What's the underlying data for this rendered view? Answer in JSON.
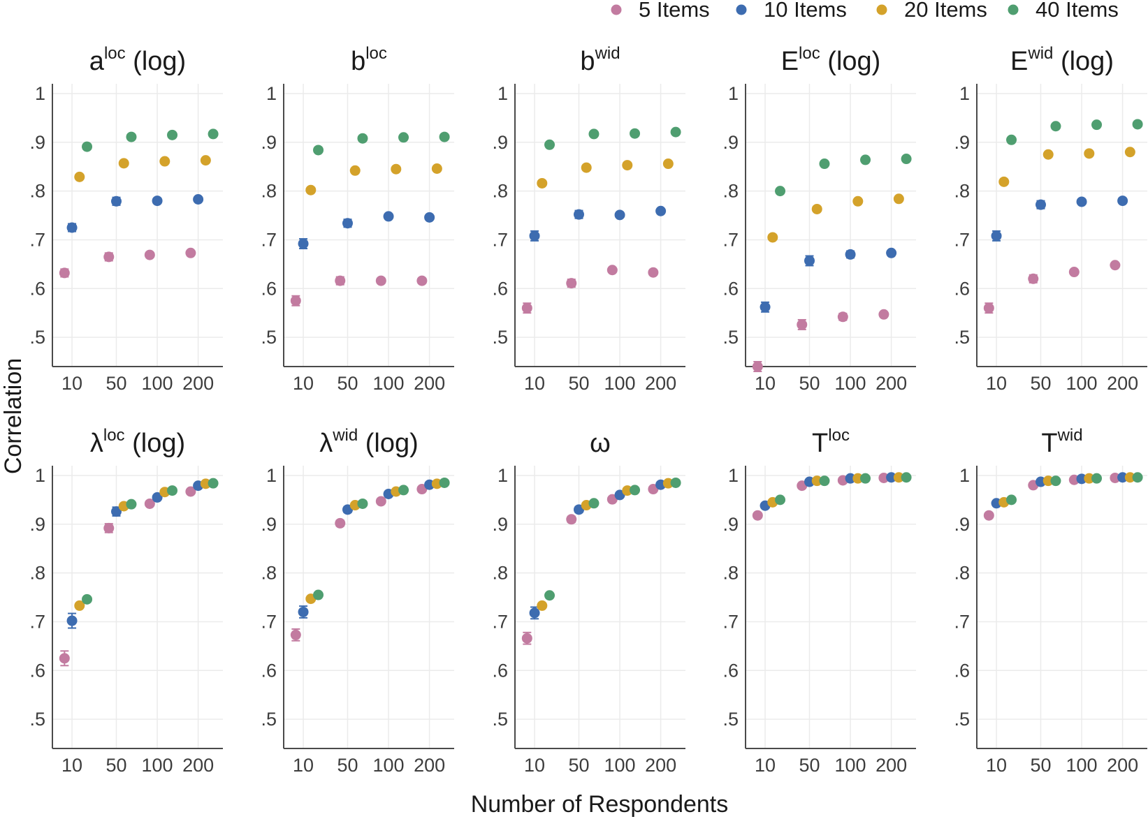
{
  "chart_data": {
    "type": "scatter",
    "xlabel": "Number of Respondents",
    "ylabel": "Correlation",
    "x_categories": [
      "10",
      "50",
      "100",
      "200"
    ],
    "y_ticks": [
      ".5",
      ".6",
      ".7",
      ".8",
      ".9",
      "1"
    ],
    "ylim": [
      0.44,
      1.02
    ],
    "grid": true,
    "legend_position": "top-right",
    "series": [
      {
        "name": "5 Items",
        "color": "#c27ba0"
      },
      {
        "name": "10 Items",
        "color": "#3d6cb0"
      },
      {
        "name": "20 Items",
        "color": "#d4a22a"
      },
      {
        "name": "40 Items",
        "color": "#4f9e70"
      }
    ],
    "panels": [
      {
        "title": "a",
        "sup": "loc",
        "suffix": " (log)",
        "values": [
          [
            0.632,
            0.665,
            0.669,
            0.673
          ],
          [
            0.725,
            0.779,
            0.78,
            0.783
          ],
          [
            0.829,
            0.857,
            0.861,
            0.863
          ],
          [
            0.891,
            0.911,
            0.915,
            0.917
          ]
        ],
        "errors": [
          0.008,
          0.008,
          0,
          0
        ]
      },
      {
        "title": "b",
        "sup": "loc",
        "suffix": "",
        "values": [
          [
            0.575,
            0.616,
            0.616,
            0.616
          ],
          [
            0.692,
            0.734,
            0.748,
            0.746
          ],
          [
            0.802,
            0.842,
            0.845,
            0.846
          ],
          [
            0.884,
            0.908,
            0.91,
            0.911
          ]
        ],
        "errors": [
          0.01,
          0.008,
          0,
          0
        ]
      },
      {
        "title": "b",
        "sup": "wid",
        "suffix": "",
        "values": [
          [
            0.56,
            0.611,
            0.638,
            0.633
          ],
          [
            0.708,
            0.752,
            0.751,
            0.759
          ],
          [
            0.816,
            0.848,
            0.853,
            0.856
          ],
          [
            0.895,
            0.917,
            0.918,
            0.921
          ]
        ],
        "errors": [
          0.01,
          0.008,
          0,
          0
        ]
      },
      {
        "title": "E",
        "sup": "loc",
        "suffix": " (log)",
        "values": [
          [
            0.44,
            0.526,
            0.542,
            0.547
          ],
          [
            0.562,
            0.657,
            0.67,
            0.673
          ],
          [
            0.705,
            0.763,
            0.779,
            0.784
          ],
          [
            0.8,
            0.856,
            0.864,
            0.866
          ]
        ],
        "errors": [
          0.01,
          0.01,
          0.007,
          0
        ]
      },
      {
        "title": "E",
        "sup": "wid",
        "suffix": " (log)",
        "values": [
          [
            0.56,
            0.62,
            0.634,
            0.648
          ],
          [
            0.708,
            0.772,
            0.778,
            0.78
          ],
          [
            0.819,
            0.875,
            0.877,
            0.88
          ],
          [
            0.905,
            0.933,
            0.936,
            0.937
          ]
        ],
        "errors": [
          0.01,
          0.008,
          0,
          0
        ]
      },
      {
        "title": "λ",
        "sup": "loc",
        "suffix": " (log)",
        "values": [
          [
            0.625,
            0.892,
            0.942,
            0.967
          ],
          [
            0.702,
            0.926,
            0.955,
            0.979
          ],
          [
            0.733,
            0.937,
            0.966,
            0.983
          ],
          [
            0.746,
            0.941,
            0.969,
            0.984
          ]
        ],
        "errors": [
          0.015,
          0.009,
          0,
          0
        ]
      },
      {
        "title": "λ",
        "sup": "wid",
        "suffix": " (log)",
        "values": [
          [
            0.673,
            0.902,
            0.947,
            0.972
          ],
          [
            0.72,
            0.93,
            0.962,
            0.981
          ],
          [
            0.747,
            0.939,
            0.967,
            0.983
          ],
          [
            0.755,
            0.942,
            0.97,
            0.985
          ]
        ],
        "errors": [
          0.012,
          0.006,
          0,
          0
        ]
      },
      {
        "title": "ω",
        "sup": "",
        "suffix": "",
        "values": [
          [
            0.666,
            0.91,
            0.951,
            0.972
          ],
          [
            0.718,
            0.93,
            0.96,
            0.981
          ],
          [
            0.733,
            0.939,
            0.969,
            0.984
          ],
          [
            0.754,
            0.943,
            0.97,
            0.985
          ]
        ],
        "errors": [
          0.012,
          0.006,
          0,
          0
        ]
      },
      {
        "title": "T",
        "sup": "loc",
        "suffix": "",
        "values": [
          [
            0.918,
            0.979,
            0.99,
            0.995
          ],
          [
            0.938,
            0.987,
            0.994,
            0.996
          ],
          [
            0.945,
            0.989,
            0.994,
            0.996
          ],
          [
            0.95,
            0.989,
            0.994,
            0.996
          ]
        ],
        "errors": [
          0,
          0,
          0,
          0
        ]
      },
      {
        "title": "T",
        "sup": "wid",
        "suffix": "",
        "values": [
          [
            0.918,
            0.98,
            0.991,
            0.995
          ],
          [
            0.943,
            0.987,
            0.993,
            0.996
          ],
          [
            0.945,
            0.989,
            0.994,
            0.996
          ],
          [
            0.95,
            0.989,
            0.994,
            0.996
          ]
        ],
        "errors": [
          0,
          0,
          0,
          0
        ]
      }
    ]
  }
}
